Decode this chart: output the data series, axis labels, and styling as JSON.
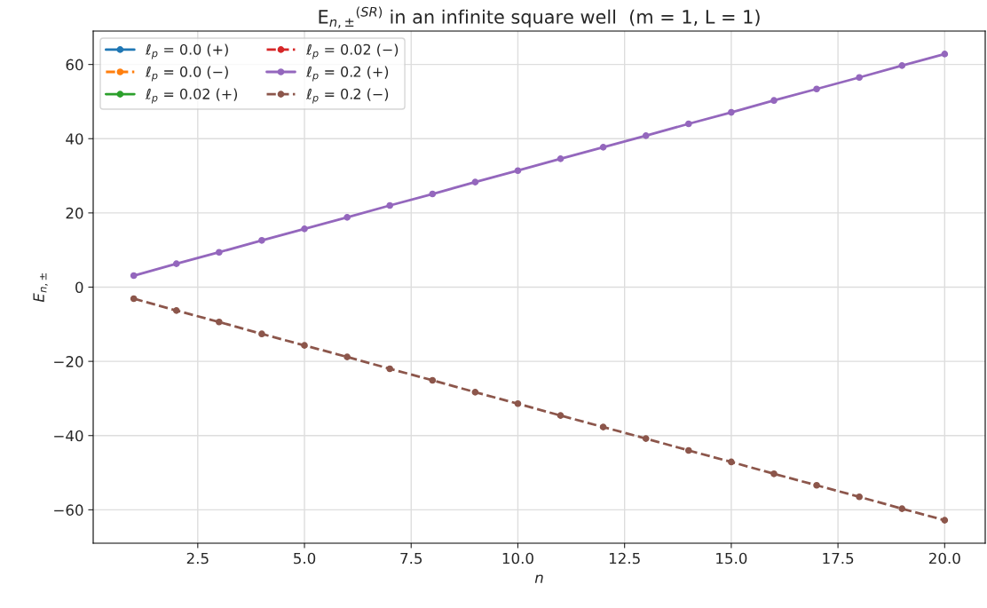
{
  "chart_data": {
    "type": "line",
    "title": "E$_{n,±}$$^{(SR)}$ in an infinite square well  (m = 1, L = 1)",
    "xlabel": "n",
    "ylabel": "E$_{n,±}$",
    "x": [
      1,
      2,
      3,
      4,
      5,
      6,
      7,
      8,
      9,
      10,
      11,
      12,
      13,
      14,
      15,
      16,
      17,
      18,
      19,
      20
    ],
    "xlim": [
      0.05,
      20.95
    ],
    "xticks": [
      {
        "value": 2.5,
        "label": "2.5"
      },
      {
        "value": 5,
        "label": "5.0"
      },
      {
        "value": 7.5,
        "label": "7.5"
      },
      {
        "value": 10,
        "label": "10.0"
      },
      {
        "value": 12.5,
        "label": "12.5"
      },
      {
        "value": 15,
        "label": "15.0"
      },
      {
        "value": 17.5,
        "label": "17.5"
      },
      {
        "value": 20,
        "label": "20.0"
      }
    ],
    "ylim": [
      -69,
      69
    ],
    "yticks": [
      {
        "value": -60,
        "label": "−60"
      },
      {
        "value": -40,
        "label": "−40"
      },
      {
        "value": -20,
        "label": "−20"
      },
      0,
      20,
      40,
      60
    ],
    "grid": true,
    "legend": "top left",
    "marker": "circle",
    "series": [
      {
        "name": "ℓ$_{p}$ = 0.0 (+)",
        "color": "#1f77b4",
        "line_style": "solid",
        "values": [
          null,
          null,
          null,
          null,
          null,
          null,
          null,
          null,
          null,
          null,
          null,
          null,
          null,
          null,
          null,
          null,
          null,
          null,
          null,
          null
        ]
      },
      {
        "name": "ℓ$_{p}$ = 0.0 (−)",
        "color": "#ff7f0e",
        "line_style": "dashed",
        "values": [
          null,
          null,
          null,
          null,
          null,
          null,
          null,
          null,
          null,
          null,
          null,
          null,
          null,
          null,
          null,
          null,
          null,
          null,
          null,
          null
        ]
      },
      {
        "name": "ℓ$_{p}$ = 0.02 (+)",
        "color": "#2ca02c",
        "line_style": "solid",
        "values": [
          null,
          null,
          null,
          null,
          null,
          null,
          null,
          null,
          null,
          null,
          null,
          null,
          null,
          null,
          null,
          null,
          null,
          null,
          null,
          null
        ]
      },
      {
        "name": "ℓ$_{p}$ = 0.02 (−)",
        "color": "#d62728",
        "line_style": "dashed",
        "values": [
          null,
          null,
          null,
          null,
          null,
          null,
          null,
          null,
          null,
          null,
          null,
          null,
          null,
          null,
          null,
          null,
          null,
          null,
          null,
          null
        ]
      },
      {
        "name": "ℓ$_{p}$ = 0.2 (+)",
        "color": "#9467bd",
        "line_style": "solid",
        "values": [
          3.1,
          6.3,
          9.4,
          12.6,
          15.7,
          18.8,
          22.0,
          25.1,
          28.3,
          31.4,
          34.6,
          37.7,
          40.8,
          44.0,
          47.1,
          50.3,
          53.4,
          56.5,
          59.7,
          62.8
        ]
      },
      {
        "name": "ℓ$_{p}$ = 0.2 (−)",
        "color": "#8c564b",
        "line_style": "dashed",
        "values": [
          -3.1,
          -6.3,
          -9.4,
          -12.6,
          -15.7,
          -18.8,
          -22.0,
          -25.1,
          -28.3,
          -31.4,
          -34.6,
          -37.7,
          -40.8,
          -44.0,
          -47.1,
          -50.3,
          -53.4,
          -56.5,
          -59.7,
          -62.8
        ]
      }
    ]
  }
}
